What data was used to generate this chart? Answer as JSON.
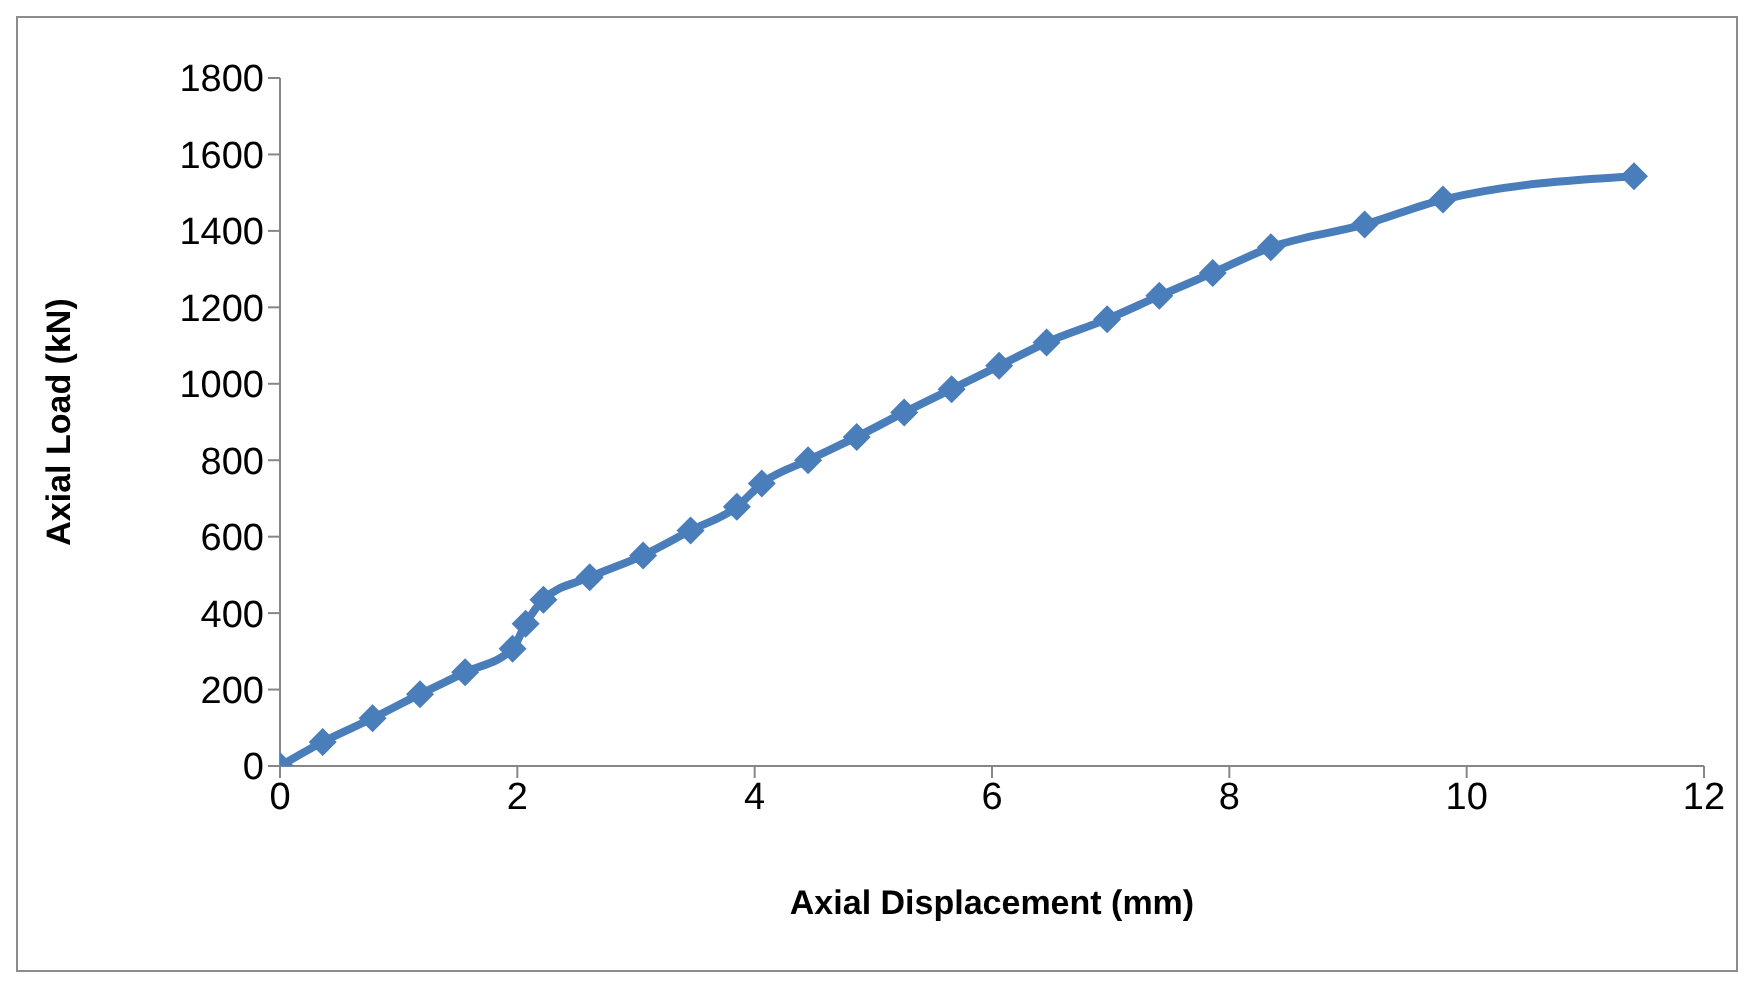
{
  "chart_data": {
    "type": "line",
    "xlabel": "Axial Displacement (mm)",
    "ylabel": "Axial Load (kN)",
    "xlim": [
      0,
      12
    ],
    "xticks": [
      0,
      2,
      4,
      6,
      8,
      10,
      12
    ],
    "ylim": [
      0,
      1800
    ],
    "yticks": [
      0,
      200,
      400,
      600,
      800,
      1000,
      1200,
      1400,
      1600,
      1800
    ],
    "grid": false,
    "legend": false,
    "marker": "diamond",
    "line_style": "solid",
    "series": [
      {
        "color": "#4a7ebb",
        "x": [
          0,
          0.36,
          0.78,
          1.18,
          1.56,
          1.96,
          2.07,
          2.22,
          2.61,
          3.06,
          3.46,
          3.85,
          4.06,
          4.45,
          4.86,
          5.26,
          5.66,
          6.06,
          6.46,
          6.97,
          7.41,
          7.86,
          8.35,
          9.14,
          9.8,
          11.41
        ],
        "values": [
          0,
          63,
          125,
          188,
          245,
          307,
          372,
          435,
          494,
          551,
          616,
          678,
          739,
          800,
          861,
          925,
          986,
          1047,
          1108,
          1169,
          1230,
          1290,
          1357,
          1417,
          1482,
          1543
        ]
      }
    ]
  }
}
